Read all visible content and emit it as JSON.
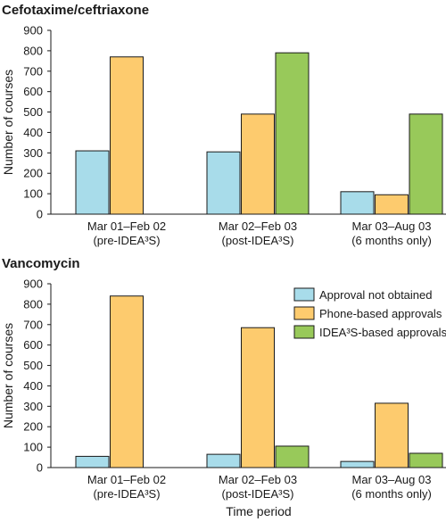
{
  "figure": {
    "xlabel": "Time period",
    "legend": [
      {
        "name": "Approval not obtained",
        "color": "#a8dcea"
      },
      {
        "name": "Phone-based approvals",
        "color": "#fdcb6e"
      },
      {
        "name": "IDEA³S-based approvals",
        "color": "#98c95a"
      }
    ]
  },
  "chart_data": [
    {
      "type": "bar",
      "title": "Cefotaxime/ceftriaxone",
      "ylabel": "Number of courses",
      "ylim": [
        0,
        900
      ],
      "yticks": [
        "0",
        "100",
        "200",
        "300",
        "400",
        "500",
        "600",
        "700",
        "800",
        "900"
      ],
      "categories": [
        [
          "Mar 01–Feb 02",
          "(pre-IDEA³S)"
        ],
        [
          "Mar 02–Feb 03",
          "(post-IDEA³S)"
        ],
        [
          "Mar 03–Aug 03",
          "(6 months only)"
        ]
      ],
      "series": [
        {
          "name": "Approval not obtained",
          "values": [
            310,
            305,
            110
          ]
        },
        {
          "name": "Phone-based approvals",
          "values": [
            770,
            490,
            95
          ]
        },
        {
          "name": "IDEA³S-based approvals",
          "values": [
            0,
            790,
            490
          ]
        }
      ]
    },
    {
      "type": "bar",
      "title": "Vancomycin",
      "ylabel": "Number of courses",
      "ylim": [
        0,
        900
      ],
      "yticks": [
        "0",
        "100",
        "200",
        "300",
        "400",
        "500",
        "600",
        "700",
        "800",
        "900"
      ],
      "categories": [
        [
          "Mar 01–Feb 02",
          "(pre-IDEA³S)"
        ],
        [
          "Mar 02–Feb 03",
          "(post-IDEA³S)"
        ],
        [
          "Mar 03–Aug 03",
          "(6 months only)"
        ]
      ],
      "series": [
        {
          "name": "Approval not obtained",
          "values": [
            55,
            65,
            30
          ]
        },
        {
          "name": "Phone-based approvals",
          "values": [
            840,
            685,
            315
          ]
        },
        {
          "name": "IDEA³S-based approvals",
          "values": [
            0,
            105,
            70
          ]
        }
      ]
    }
  ]
}
